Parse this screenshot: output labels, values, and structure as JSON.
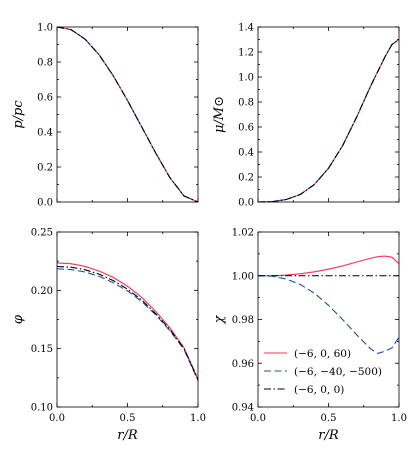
{
  "chart_data": [
    {
      "type": "line",
      "panel": "top-left",
      "ylabel": "p/p_c",
      "ylabel_text": "p/pc",
      "xlim": [
        0,
        1
      ],
      "ylim": [
        0,
        1
      ],
      "xticks": [
        "",
        "",
        ""
      ],
      "yticks": [
        "0.0",
        "0.2",
        "0.4",
        "0.6",
        "0.8",
        "1.0"
      ],
      "series": [
        {
          "style": "solid",
          "color": "#ff3355",
          "x": [
            0,
            0.1,
            0.2,
            0.3,
            0.4,
            0.5,
            0.6,
            0.7,
            0.8,
            0.9,
            1.0
          ],
          "y": [
            1.0,
            0.985,
            0.93,
            0.84,
            0.72,
            0.58,
            0.43,
            0.28,
            0.14,
            0.035,
            0.0
          ]
        },
        {
          "style": "dashed",
          "color": "#1f4fa8",
          "x": [
            0,
            0.1,
            0.2,
            0.3,
            0.4,
            0.5,
            0.6,
            0.7,
            0.8,
            0.9,
            1.0
          ],
          "y": [
            1.0,
            0.985,
            0.93,
            0.84,
            0.72,
            0.58,
            0.43,
            0.28,
            0.14,
            0.035,
            0.0
          ]
        },
        {
          "style": "dashdot",
          "color": "#000000",
          "x": [
            0,
            0.1,
            0.2,
            0.3,
            0.4,
            0.5,
            0.6,
            0.7,
            0.8,
            0.9,
            1.0
          ],
          "y": [
            1.0,
            0.985,
            0.93,
            0.84,
            0.72,
            0.58,
            0.43,
            0.28,
            0.14,
            0.035,
            0.0
          ]
        }
      ]
    },
    {
      "type": "line",
      "panel": "top-right",
      "ylabel": "μ/M_⊙",
      "ylabel_text": "μ/M⊙",
      "xlim": [
        0,
        1
      ],
      "ylim": [
        0,
        1.4
      ],
      "xticks": [
        "",
        "",
        ""
      ],
      "yticks": [
        "0.0",
        "0.2",
        "0.4",
        "0.6",
        "0.8",
        "1.0",
        "1.2",
        "1.4"
      ],
      "series": [
        {
          "style": "solid",
          "color": "#ff3355",
          "x": [
            0,
            0.1,
            0.2,
            0.3,
            0.4,
            0.5,
            0.6,
            0.7,
            0.8,
            0.9,
            0.95,
            1.0
          ],
          "y": [
            0.0,
            0.003,
            0.02,
            0.06,
            0.14,
            0.27,
            0.45,
            0.68,
            0.93,
            1.16,
            1.26,
            1.3
          ]
        },
        {
          "style": "dashed",
          "color": "#1f4fa8",
          "x": [
            0,
            0.1,
            0.2,
            0.3,
            0.4,
            0.5,
            0.6,
            0.7,
            0.8,
            0.9,
            0.95,
            1.0
          ],
          "y": [
            0.0,
            0.003,
            0.02,
            0.06,
            0.14,
            0.27,
            0.45,
            0.68,
            0.93,
            1.16,
            1.26,
            1.3
          ]
        },
        {
          "style": "dashdot",
          "color": "#000000",
          "x": [
            0,
            0.1,
            0.2,
            0.3,
            0.4,
            0.5,
            0.6,
            0.7,
            0.8,
            0.9,
            0.95,
            1.0
          ],
          "y": [
            0.0,
            0.003,
            0.02,
            0.06,
            0.14,
            0.27,
            0.45,
            0.68,
            0.93,
            1.16,
            1.26,
            1.3
          ]
        }
      ]
    },
    {
      "type": "line",
      "panel": "bottom-left",
      "xlabel": "r/R",
      "ylabel": "φ",
      "xlim": [
        0,
        1
      ],
      "ylim": [
        0.1,
        0.25
      ],
      "xticks": [
        "0.0",
        "0.5",
        "1.0"
      ],
      "yticks": [
        "0.10",
        "0.15",
        "0.20",
        "0.25"
      ],
      "series": [
        {
          "style": "solid",
          "color": "#ff3355",
          "x": [
            0,
            0.1,
            0.2,
            0.3,
            0.4,
            0.5,
            0.6,
            0.7,
            0.8,
            0.9,
            1.0
          ],
          "y": [
            0.2235,
            0.2228,
            0.2205,
            0.2165,
            0.211,
            0.2035,
            0.194,
            0.182,
            0.168,
            0.151,
            0.124
          ]
        },
        {
          "style": "dashed",
          "color": "#1f4fa8",
          "x": [
            0,
            0.1,
            0.2,
            0.3,
            0.4,
            0.5,
            0.6,
            0.7,
            0.8,
            0.9,
            1.0
          ],
          "y": [
            0.2185,
            0.2178,
            0.2157,
            0.212,
            0.2065,
            0.1995,
            0.1905,
            0.179,
            0.1655,
            0.1495,
            0.1225
          ]
        },
        {
          "style": "dashdot",
          "color": "#000000",
          "x": [
            0,
            0.1,
            0.2,
            0.3,
            0.4,
            0.5,
            0.6,
            0.7,
            0.8,
            0.9,
            1.0
          ],
          "y": [
            0.2205,
            0.2198,
            0.2176,
            0.2138,
            0.2083,
            0.201,
            0.1918,
            0.18,
            0.1665,
            0.1503,
            0.1235
          ]
        }
      ]
    },
    {
      "type": "line",
      "panel": "bottom-right",
      "xlabel": "r/R",
      "ylabel": "χ",
      "xlim": [
        0,
        1
      ],
      "ylim": [
        0.94,
        1.02
      ],
      "xticks": [
        "0.0",
        "0.5",
        "1.0"
      ],
      "yticks": [
        "0.94",
        "0.96",
        "0.98",
        "1.00",
        "1.02"
      ],
      "legend_position": "lower-left",
      "series": [
        {
          "name": "(−6, 0, 60)",
          "style": "solid",
          "color": "#ff3355",
          "x": [
            0,
            0.1,
            0.2,
            0.3,
            0.4,
            0.5,
            0.6,
            0.7,
            0.8,
            0.85,
            0.9,
            0.95,
            1.0
          ],
          "y": [
            1.0,
            1.0,
            1.0003,
            1.0009,
            1.0018,
            1.003,
            1.0045,
            1.0063,
            1.008,
            1.0087,
            1.009,
            1.0085,
            1.0055
          ]
        },
        {
          "name": "(−6, −40, −500)",
          "style": "dashed",
          "color": "#1f4fa8",
          "x": [
            0,
            0.1,
            0.2,
            0.3,
            0.4,
            0.5,
            0.6,
            0.7,
            0.8,
            0.85,
            0.9,
            0.95,
            1.0
          ],
          "y": [
            1.0,
            0.9998,
            0.9985,
            0.996,
            0.992,
            0.9865,
            0.98,
            0.973,
            0.9665,
            0.9645,
            0.9655,
            0.967,
            0.972
          ]
        },
        {
          "name": "(−6, 0, 0)",
          "style": "dashdot",
          "color": "#000000",
          "x": [
            0,
            0.5,
            1.0
          ],
          "y": [
            1.0,
            1.0,
            1.0
          ]
        }
      ]
    }
  ]
}
